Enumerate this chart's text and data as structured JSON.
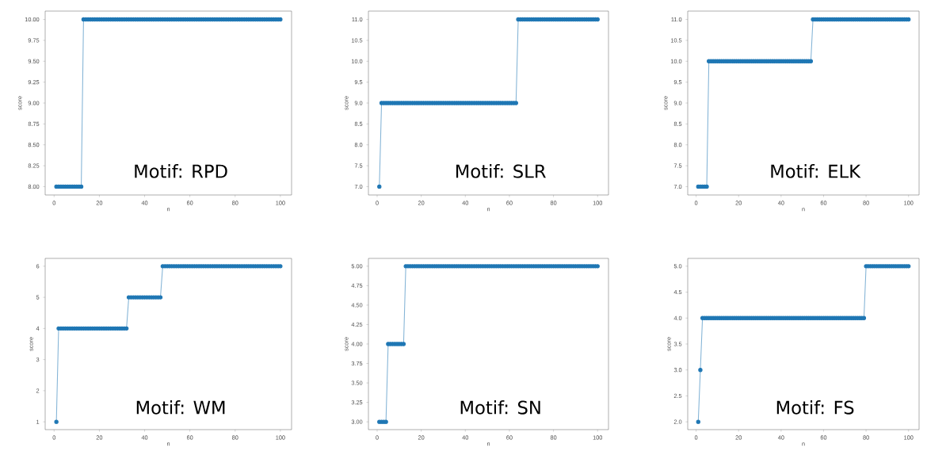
{
  "chart_data": [
    {
      "type": "line",
      "xlabel": "n",
      "ylabel": "score",
      "annotations": [
        "Motif: RPD"
      ],
      "marker": "circle",
      "xlim": [
        -3.95,
        104.95
      ],
      "ylim": [
        7.9,
        10.1
      ],
      "xticks": [
        0,
        20,
        40,
        60,
        80,
        100
      ],
      "yticks": [
        {
          "value": 8,
          "label": "8.00"
        },
        {
          "value": 8.25,
          "label": "8.25"
        },
        {
          "value": 8.5,
          "label": "8.50"
        },
        {
          "value": 8.75,
          "label": "8.75"
        },
        {
          "value": 9,
          "label": "9.00"
        },
        {
          "value": 9.25,
          "label": "9.25"
        },
        {
          "value": 9.5,
          "label": "9.50"
        },
        {
          "value": 9.75,
          "label": "9.75"
        },
        {
          "value": 10,
          "label": "10.00"
        }
      ],
      "x": [
        1,
        2,
        3,
        4,
        5,
        6,
        7,
        8,
        9,
        10,
        11,
        12,
        13,
        14,
        15,
        16,
        17,
        18,
        19,
        20,
        21,
        22,
        23,
        24,
        25,
        26,
        27,
        28,
        29,
        30,
        31,
        32,
        33,
        34,
        35,
        36,
        37,
        38,
        39,
        40,
        41,
        42,
        43,
        44,
        45,
        46,
        47,
        48,
        49,
        50,
        51,
        52,
        53,
        54,
        55,
        56,
        57,
        58,
        59,
        60,
        61,
        62,
        63,
        64,
        65,
        66,
        67,
        68,
        69,
        70,
        71,
        72,
        73,
        74,
        75,
        76,
        77,
        78,
        79,
        80,
        81,
        82,
        83,
        84,
        85,
        86,
        87,
        88,
        89,
        90,
        91,
        92,
        93,
        94,
        95,
        96,
        97,
        98,
        99,
        100
      ],
      "series": [
        {
          "color": "#1f77b4",
          "values": [
            8,
            8,
            8,
            8,
            8,
            8,
            8,
            8,
            8,
            8,
            8,
            8,
            10,
            10,
            10,
            10,
            10,
            10,
            10,
            10,
            10,
            10,
            10,
            10,
            10,
            10,
            10,
            10,
            10,
            10,
            10,
            10,
            10,
            10,
            10,
            10,
            10,
            10,
            10,
            10,
            10,
            10,
            10,
            10,
            10,
            10,
            10,
            10,
            10,
            10,
            10,
            10,
            10,
            10,
            10,
            10,
            10,
            10,
            10,
            10,
            10,
            10,
            10,
            10,
            10,
            10,
            10,
            10,
            10,
            10,
            10,
            10,
            10,
            10,
            10,
            10,
            10,
            10,
            10,
            10,
            10,
            10,
            10,
            10,
            10,
            10,
            10,
            10,
            10,
            10,
            10,
            10,
            10,
            10,
            10,
            10,
            10,
            10,
            10,
            10
          ]
        }
      ]
    },
    {
      "type": "line",
      "xlabel": "n",
      "ylabel": "score",
      "annotations": [
        "Motif: SLR"
      ],
      "marker": "circle",
      "xlim": [
        -3.95,
        104.95
      ],
      "ylim": [
        6.8,
        11.2
      ],
      "xticks": [
        0,
        20,
        40,
        60,
        80,
        100
      ],
      "yticks": [
        {
          "value": 7,
          "label": "7.0"
        },
        {
          "value": 7.5,
          "label": "7.5"
        },
        {
          "value": 8,
          "label": "8.0"
        },
        {
          "value": 8.5,
          "label": "8.5"
        },
        {
          "value": 9,
          "label": "9.0"
        },
        {
          "value": 9.5,
          "label": "9.5"
        },
        {
          "value": 10,
          "label": "10.0"
        },
        {
          "value": 10.5,
          "label": "10.5"
        },
        {
          "value": 11,
          "label": "11.0"
        }
      ],
      "x": [
        1,
        2,
        3,
        4,
        5,
        6,
        7,
        8,
        9,
        10,
        11,
        12,
        13,
        14,
        15,
        16,
        17,
        18,
        19,
        20,
        21,
        22,
        23,
        24,
        25,
        26,
        27,
        28,
        29,
        30,
        31,
        32,
        33,
        34,
        35,
        36,
        37,
        38,
        39,
        40,
        41,
        42,
        43,
        44,
        45,
        46,
        47,
        48,
        49,
        50,
        51,
        52,
        53,
        54,
        55,
        56,
        57,
        58,
        59,
        60,
        61,
        62,
        63,
        64,
        65,
        66,
        67,
        68,
        69,
        70,
        71,
        72,
        73,
        74,
        75,
        76,
        77,
        78,
        79,
        80,
        81,
        82,
        83,
        84,
        85,
        86,
        87,
        88,
        89,
        90,
        91,
        92,
        93,
        94,
        95,
        96,
        97,
        98,
        99,
        100
      ],
      "series": [
        {
          "color": "#1f77b4",
          "values": [
            7,
            9,
            9,
            9,
            9,
            9,
            9,
            9,
            9,
            9,
            9,
            9,
            9,
            9,
            9,
            9,
            9,
            9,
            9,
            9,
            9,
            9,
            9,
            9,
            9,
            9,
            9,
            9,
            9,
            9,
            9,
            9,
            9,
            9,
            9,
            9,
            9,
            9,
            9,
            9,
            9,
            9,
            9,
            9,
            9,
            9,
            9,
            9,
            9,
            9,
            9,
            9,
            9,
            9,
            9,
            9,
            9,
            9,
            9,
            9,
            9,
            9,
            9,
            11,
            11,
            11,
            11,
            11,
            11,
            11,
            11,
            11,
            11,
            11,
            11,
            11,
            11,
            11,
            11,
            11,
            11,
            11,
            11,
            11,
            11,
            11,
            11,
            11,
            11,
            11,
            11,
            11,
            11,
            11,
            11,
            11,
            11,
            11,
            11,
            11
          ]
        }
      ]
    },
    {
      "type": "line",
      "xlabel": "n",
      "ylabel": "score",
      "annotations": [
        "Motif: ELK"
      ],
      "marker": "circle",
      "xlim": [
        -3.95,
        104.95
      ],
      "ylim": [
        6.8,
        11.2
      ],
      "xticks": [
        0,
        20,
        40,
        60,
        80,
        100
      ],
      "yticks": [
        {
          "value": 7,
          "label": "7.0"
        },
        {
          "value": 7.5,
          "label": "7.5"
        },
        {
          "value": 8,
          "label": "8.0"
        },
        {
          "value": 8.5,
          "label": "8.5"
        },
        {
          "value": 9,
          "label": "9.0"
        },
        {
          "value": 9.5,
          "label": "9.5"
        },
        {
          "value": 10,
          "label": "10.0"
        },
        {
          "value": 10.5,
          "label": "10.5"
        },
        {
          "value": 11,
          "label": "11.0"
        }
      ],
      "x": [
        1,
        2,
        3,
        4,
        5,
        6,
        7,
        8,
        9,
        10,
        11,
        12,
        13,
        14,
        15,
        16,
        17,
        18,
        19,
        20,
        21,
        22,
        23,
        24,
        25,
        26,
        27,
        28,
        29,
        30,
        31,
        32,
        33,
        34,
        35,
        36,
        37,
        38,
        39,
        40,
        41,
        42,
        43,
        44,
        45,
        46,
        47,
        48,
        49,
        50,
        51,
        52,
        53,
        54,
        55,
        56,
        57,
        58,
        59,
        60,
        61,
        62,
        63,
        64,
        65,
        66,
        67,
        68,
        69,
        70,
        71,
        72,
        73,
        74,
        75,
        76,
        77,
        78,
        79,
        80,
        81,
        82,
        83,
        84,
        85,
        86,
        87,
        88,
        89,
        90,
        91,
        92,
        93,
        94,
        95,
        96,
        97,
        98,
        99,
        100
      ],
      "series": [
        {
          "color": "#1f77b4",
          "values": [
            7,
            7,
            7,
            7,
            7,
            10,
            10,
            10,
            10,
            10,
            10,
            10,
            10,
            10,
            10,
            10,
            10,
            10,
            10,
            10,
            10,
            10,
            10,
            10,
            10,
            10,
            10,
            10,
            10,
            10,
            10,
            10,
            10,
            10,
            10,
            10,
            10,
            10,
            10,
            10,
            10,
            10,
            10,
            10,
            10,
            10,
            10,
            10,
            10,
            10,
            10,
            10,
            10,
            10,
            11,
            11,
            11,
            11,
            11,
            11,
            11,
            11,
            11,
            11,
            11,
            11,
            11,
            11,
            11,
            11,
            11,
            11,
            11,
            11,
            11,
            11,
            11,
            11,
            11,
            11,
            11,
            11,
            11,
            11,
            11,
            11,
            11,
            11,
            11,
            11,
            11,
            11,
            11,
            11,
            11,
            11,
            11,
            11,
            11,
            11
          ]
        }
      ]
    },
    {
      "type": "line",
      "xlabel": "n",
      "ylabel": "score",
      "annotations": [
        "Motif: WM"
      ],
      "marker": "circle",
      "xlim": [
        -3.95,
        104.95
      ],
      "ylim": [
        0.75,
        6.25
      ],
      "xticks": [
        0,
        20,
        40,
        60,
        80,
        100
      ],
      "yticks": [
        1,
        2,
        3,
        4,
        5,
        6
      ],
      "x": [
        1,
        2,
        3,
        4,
        5,
        6,
        7,
        8,
        9,
        10,
        11,
        12,
        13,
        14,
        15,
        16,
        17,
        18,
        19,
        20,
        21,
        22,
        23,
        24,
        25,
        26,
        27,
        28,
        29,
        30,
        31,
        32,
        33,
        34,
        35,
        36,
        37,
        38,
        39,
        40,
        41,
        42,
        43,
        44,
        45,
        46,
        47,
        48,
        49,
        50,
        51,
        52,
        53,
        54,
        55,
        56,
        57,
        58,
        59,
        60,
        61,
        62,
        63,
        64,
        65,
        66,
        67,
        68,
        69,
        70,
        71,
        72,
        73,
        74,
        75,
        76,
        77,
        78,
        79,
        80,
        81,
        82,
        83,
        84,
        85,
        86,
        87,
        88,
        89,
        90,
        91,
        92,
        93,
        94,
        95,
        96,
        97,
        98,
        99,
        100
      ],
      "series": [
        {
          "color": "#1f77b4",
          "values": [
            1,
            4,
            4,
            4,
            4,
            4,
            4,
            4,
            4,
            4,
            4,
            4,
            4,
            4,
            4,
            4,
            4,
            4,
            4,
            4,
            4,
            4,
            4,
            4,
            4,
            4,
            4,
            4,
            4,
            4,
            4,
            4,
            5,
            5,
            5,
            5,
            5,
            5,
            5,
            5,
            5,
            5,
            5,
            5,
            5,
            5,
            5,
            6,
            6,
            6,
            6,
            6,
            6,
            6,
            6,
            6,
            6,
            6,
            6,
            6,
            6,
            6,
            6,
            6,
            6,
            6,
            6,
            6,
            6,
            6,
            6,
            6,
            6,
            6,
            6,
            6,
            6,
            6,
            6,
            6,
            6,
            6,
            6,
            6,
            6,
            6,
            6,
            6,
            6,
            6,
            6,
            6,
            6,
            6,
            6,
            6,
            6,
            6,
            6,
            6
          ]
        }
      ]
    },
    {
      "type": "line",
      "xlabel": "n",
      "ylabel": "score",
      "annotations": [
        "Motif: SN"
      ],
      "marker": "circle",
      "xlim": [
        -3.95,
        104.95
      ],
      "ylim": [
        2.9,
        5.1
      ],
      "xticks": [
        0,
        20,
        40,
        60,
        80,
        100
      ],
      "yticks": [
        {
          "value": 3,
          "label": "3.00"
        },
        {
          "value": 3.25,
          "label": "3.25"
        },
        {
          "value": 3.5,
          "label": "3.50"
        },
        {
          "value": 3.75,
          "label": "3.75"
        },
        {
          "value": 4,
          "label": "4.00"
        },
        {
          "value": 4.25,
          "label": "4.25"
        },
        {
          "value": 4.5,
          "label": "4.50"
        },
        {
          "value": 4.75,
          "label": "4.75"
        },
        {
          "value": 5,
          "label": "5.00"
        }
      ],
      "x": [
        1,
        2,
        3,
        4,
        5,
        6,
        7,
        8,
        9,
        10,
        11,
        12,
        13,
        14,
        15,
        16,
        17,
        18,
        19,
        20,
        21,
        22,
        23,
        24,
        25,
        26,
        27,
        28,
        29,
        30,
        31,
        32,
        33,
        34,
        35,
        36,
        37,
        38,
        39,
        40,
        41,
        42,
        43,
        44,
        45,
        46,
        47,
        48,
        49,
        50,
        51,
        52,
        53,
        54,
        55,
        56,
        57,
        58,
        59,
        60,
        61,
        62,
        63,
        64,
        65,
        66,
        67,
        68,
        69,
        70,
        71,
        72,
        73,
        74,
        75,
        76,
        77,
        78,
        79,
        80,
        81,
        82,
        83,
        84,
        85,
        86,
        87,
        88,
        89,
        90,
        91,
        92,
        93,
        94,
        95,
        96,
        97,
        98,
        99,
        100
      ],
      "series": [
        {
          "color": "#1f77b4",
          "values": [
            3,
            3,
            3,
            3,
            4,
            4,
            4,
            4,
            4,
            4,
            4,
            4,
            5,
            5,
            5,
            5,
            5,
            5,
            5,
            5,
            5,
            5,
            5,
            5,
            5,
            5,
            5,
            5,
            5,
            5,
            5,
            5,
            5,
            5,
            5,
            5,
            5,
            5,
            5,
            5,
            5,
            5,
            5,
            5,
            5,
            5,
            5,
            5,
            5,
            5,
            5,
            5,
            5,
            5,
            5,
            5,
            5,
            5,
            5,
            5,
            5,
            5,
            5,
            5,
            5,
            5,
            5,
            5,
            5,
            5,
            5,
            5,
            5,
            5,
            5,
            5,
            5,
            5,
            5,
            5,
            5,
            5,
            5,
            5,
            5,
            5,
            5,
            5,
            5,
            5,
            5,
            5,
            5,
            5,
            5,
            5,
            5,
            5,
            5,
            5
          ]
        }
      ]
    },
    {
      "type": "line",
      "xlabel": "n",
      "ylabel": "score",
      "annotations": [
        "Motif: FS"
      ],
      "marker": "circle",
      "xlim": [
        -3.95,
        104.95
      ],
      "ylim": [
        1.85,
        5.15
      ],
      "xticks": [
        0,
        20,
        40,
        60,
        80,
        100
      ],
      "yticks": [
        {
          "value": 2,
          "label": "2.0"
        },
        {
          "value": 2.5,
          "label": "2.5"
        },
        {
          "value": 3,
          "label": "3.0"
        },
        {
          "value": 3.5,
          "label": "3.5"
        },
        {
          "value": 4,
          "label": "4.0"
        },
        {
          "value": 4.5,
          "label": "4.5"
        },
        {
          "value": 5,
          "label": "5.0"
        }
      ],
      "x": [
        1,
        2,
        3,
        4,
        5,
        6,
        7,
        8,
        9,
        10,
        11,
        12,
        13,
        14,
        15,
        16,
        17,
        18,
        19,
        20,
        21,
        22,
        23,
        24,
        25,
        26,
        27,
        28,
        29,
        30,
        31,
        32,
        33,
        34,
        35,
        36,
        37,
        38,
        39,
        40,
        41,
        42,
        43,
        44,
        45,
        46,
        47,
        48,
        49,
        50,
        51,
        52,
        53,
        54,
        55,
        56,
        57,
        58,
        59,
        60,
        61,
        62,
        63,
        64,
        65,
        66,
        67,
        68,
        69,
        70,
        71,
        72,
        73,
        74,
        75,
        76,
        77,
        78,
        79,
        80,
        81,
        82,
        83,
        84,
        85,
        86,
        87,
        88,
        89,
        90,
        91,
        92,
        93,
        94,
        95,
        96,
        97,
        98,
        99,
        100
      ],
      "series": [
        {
          "color": "#1f77b4",
          "values": [
            2,
            3,
            4,
            4,
            4,
            4,
            4,
            4,
            4,
            4,
            4,
            4,
            4,
            4,
            4,
            4,
            4,
            4,
            4,
            4,
            4,
            4,
            4,
            4,
            4,
            4,
            4,
            4,
            4,
            4,
            4,
            4,
            4,
            4,
            4,
            4,
            4,
            4,
            4,
            4,
            4,
            4,
            4,
            4,
            4,
            4,
            4,
            4,
            4,
            4,
            4,
            4,
            4,
            4,
            4,
            4,
            4,
            4,
            4,
            4,
            4,
            4,
            4,
            4,
            4,
            4,
            4,
            4,
            4,
            4,
            4,
            4,
            4,
            4,
            4,
            4,
            4,
            4,
            4,
            5,
            5,
            5,
            5,
            5,
            5,
            5,
            5,
            5,
            5,
            5,
            5,
            5,
            5,
            5,
            5,
            5,
            5,
            5,
            5,
            5
          ]
        }
      ]
    }
  ]
}
